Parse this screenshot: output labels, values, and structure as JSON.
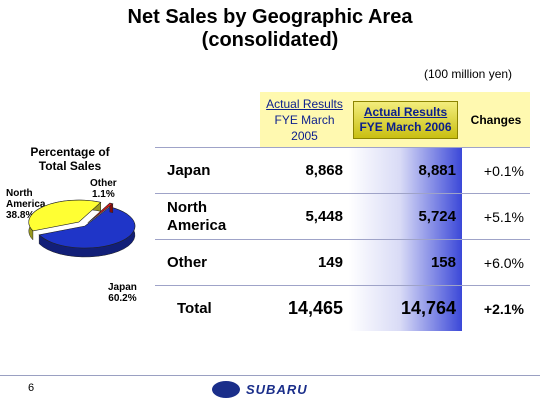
{
  "title_line1": "Net Sales by Geographic Area",
  "title_line2": "(consolidated)",
  "unit": "(100 million yen)",
  "pie_title": "Percentage of Total Sales",
  "chart_data": {
    "type": "pie",
    "title": "Percentage of Total Sales",
    "categories": [
      "Japan",
      "North America",
      "Other"
    ],
    "values": [
      60.2,
      38.8,
      1.1
    ],
    "value_labels": [
      "60.2%",
      "38.8%",
      "1.1%"
    ],
    "colors": [
      "#1f35c8",
      "#ffff33",
      "#d81818"
    ]
  },
  "pie_labels": {
    "japan_name": "Japan",
    "japan_pct": "60.2%",
    "na_name_1": "North",
    "na_name_2": "America",
    "na_pct": "38.8%",
    "other_name": "Other",
    "other_pct": "1.1%"
  },
  "table": {
    "col_2005_line1": "Actual Results",
    "col_2005_line2": "FYE March 2005",
    "col_2006_line1": "Actual Results",
    "col_2006_line2": "FYE March 2006",
    "col_changes": "Changes",
    "rows": [
      {
        "name_1": "Japan",
        "name_2": "",
        "v2005": "8,868",
        "v2006": "8,881",
        "change": "+0.1%"
      },
      {
        "name_1": "North",
        "name_2": "America",
        "v2005": "5,448",
        "v2006": "5,724",
        "change": "+5.1%"
      },
      {
        "name_1": "Other",
        "name_2": "",
        "v2005": "149",
        "v2006": "158",
        "change": "+6.0%"
      }
    ],
    "total": {
      "name": "Total",
      "v2005": "14,465",
      "v2006": "14,764",
      "change": "+2.1%"
    }
  },
  "page_number": "6",
  "logo_text": "SUBARU"
}
